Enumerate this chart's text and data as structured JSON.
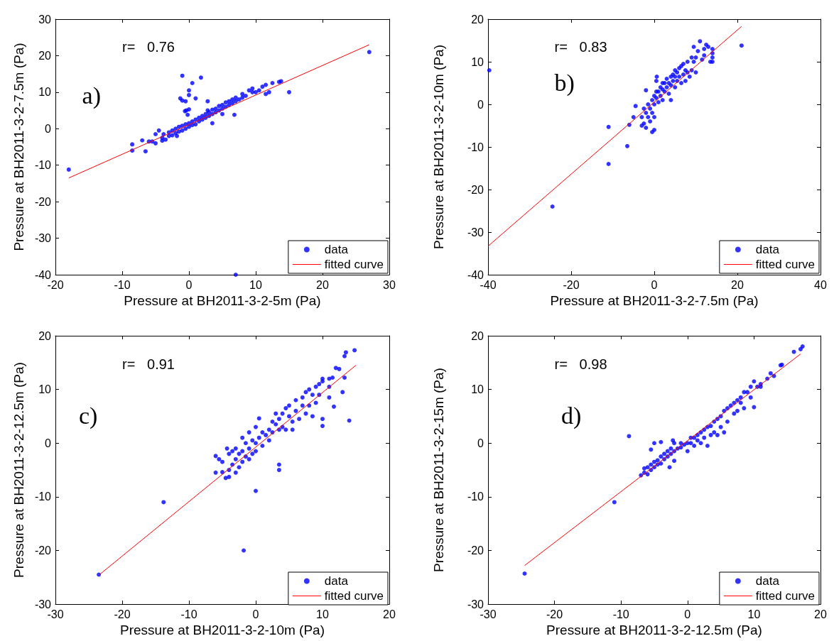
{
  "chart_data": [
    {
      "type": "scatter",
      "xlabel": "Pressure at BH2011-3-2-5m (Pa)",
      "ylabel": "Pressure at BH2011-3-2-7.5m (Pa)",
      "annotations": [
        "r=   0.76",
        "a)"
      ],
      "xlim": [
        -20,
        30
      ],
      "xticks": [
        -20,
        -10,
        0,
        10,
        20,
        30
      ],
      "ylim": [
        -40,
        30
      ],
      "yticks": [
        -40,
        -30,
        -20,
        -10,
        0,
        10,
        20,
        30
      ],
      "grid": false,
      "legend": "bottom right",
      "line_style": "solid",
      "series": [
        {
          "name": "data",
          "marker": "circle",
          "color": "#0000ff",
          "x": [
            -4,
            -3.8,
            -3.5,
            -3,
            -3,
            -2.5,
            -2.5,
            -2,
            -2,
            -1.8,
            -1.5,
            -1.5,
            -1,
            -1,
            -0.5,
            -0.5,
            0,
            0,
            0.5,
            0.5,
            1,
            1,
            1.5,
            1.5,
            2,
            2,
            2.5,
            2.5,
            3,
            3,
            3.5,
            3.5,
            4,
            4,
            4.5,
            4.5,
            5,
            5,
            5.5,
            5.5,
            6,
            6,
            6.5,
            6.5,
            7,
            7,
            7.5,
            8,
            8,
            8.5,
            9,
            9.5,
            9.5,
            10,
            10.5,
            11,
            11.5,
            12,
            12.5,
            13.5,
            13.8,
            11.5,
            3.5,
            6.8,
            5,
            -8.5,
            -8.5,
            -7,
            -6.5,
            -6,
            -5.5,
            -5,
            -4.5,
            -5,
            -4,
            -1,
            1.8,
            0.5,
            0,
            -1.3,
            0,
            -1,
            -0.5,
            1,
            2.8,
            -0.4,
            0,
            -0.6,
            -0.2,
            2.8,
            -18,
            27,
            15,
            7
          ],
          "values": [
            -2.5,
            -1.5,
            -3,
            -2,
            -1,
            -1.8,
            -0.5,
            -1.2,
            0,
            -2,
            -0.8,
            0.5,
            -0.5,
            0.8,
            0,
            1.2,
            0.5,
            1.5,
            1,
            2,
            1.2,
            2.5,
            2,
            3,
            2.5,
            3.5,
            3,
            4,
            3.5,
            4.5,
            4,
            5.2,
            4.5,
            5.5,
            5,
            6.2,
            5.5,
            6.5,
            6,
            7.2,
            6.5,
            7.5,
            7,
            8,
            7.5,
            8.5,
            8,
            8.5,
            9.5,
            9,
            10.5,
            10,
            11,
            10,
            10.5,
            11.5,
            12,
            10,
            12.5,
            12.8,
            13,
            9.5,
            1.5,
            3.8,
            4,
            -4.3,
            -6,
            -3.2,
            -6.2,
            -3.5,
            -3.5,
            -4,
            -0.5,
            -1.5,
            -3.3,
            14.5,
            14,
            12.5,
            10.5,
            8.3,
            9.2,
            7.7,
            7.5,
            8.3,
            7.5,
            5,
            5.3,
            4.8,
            3.8,
            5,
            -11.2,
            21,
            10,
            -40
          ]
        },
        {
          "name": "fitted curve",
          "type": "line",
          "marker": "none",
          "color": "#ff0000",
          "x": [
            -18,
            27
          ],
          "values": [
            -13.5,
            23
          ]
        }
      ]
    },
    {
      "type": "scatter",
      "xlabel": "Pressure at BH2011-3-2-7.5m (Pa)",
      "ylabel": "Pressure at BH2011-3-2-10m (Pa)",
      "annotations": [
        "r=   0.83",
        "b)"
      ],
      "xlim": [
        -40,
        40
      ],
      "xticks": [
        -40,
        -20,
        0,
        20,
        40
      ],
      "ylim": [
        -40,
        20
      ],
      "yticks": [
        -40,
        -30,
        -20,
        -10,
        0,
        10,
        20
      ],
      "grid": false,
      "legend": "bottom right",
      "line_style": "solid",
      "series": [
        {
          "name": "data",
          "marker": "circle",
          "color": "#0000ff",
          "x": [
            -3,
            -3,
            -2.5,
            -2.5,
            -2,
            -2,
            -1.5,
            -1.5,
            -1,
            -1,
            -0.5,
            -0.5,
            0,
            0,
            0,
            0.5,
            0.5,
            1,
            1,
            1.5,
            1.5,
            2,
            2,
            2,
            2.5,
            2.5,
            3,
            3,
            3.5,
            3.5,
            4,
            4,
            4,
            4.5,
            4.5,
            5,
            5,
            5,
            5.5,
            5.5,
            6,
            6,
            6.5,
            6.5,
            7,
            7,
            7.5,
            7.5,
            8,
            8,
            8.5,
            9,
            9,
            9.5,
            9.5,
            10,
            10,
            10.5,
            11,
            11.5,
            12,
            12,
            12.5,
            13,
            13.5,
            14,
            14,
            14,
            14,
            -0.5,
            0,
            -4.5,
            -2,
            0.5,
            0.6,
            -5,
            -39.7,
            21,
            -11,
            -11,
            -6.5,
            -6,
            -24.5
          ],
          "values": [
            -5,
            -3,
            -1,
            -4.5,
            -2,
            -5.5,
            0,
            -3,
            -1,
            -4,
            1,
            -2,
            0,
            2,
            -3,
            1.5,
            3,
            0.5,
            3,
            2,
            4,
            1,
            3.5,
            5,
            3,
            5,
            4,
            6,
            2.5,
            5,
            4.5,
            6.5,
            1,
            5.5,
            7,
            4,
            6.5,
            8,
            5.5,
            7.5,
            6.5,
            8.5,
            5,
            9,
            7,
            9.5,
            8,
            5.5,
            7.5,
            10,
            6.5,
            8,
            11,
            10,
            13.5,
            11,
            7.5,
            12.5,
            14.8,
            10.5,
            13,
            11.5,
            14,
            13.5,
            10,
            10,
            11,
            12,
            13,
            -6.5,
            -6,
            -0.4,
            3.3,
            5.5,
            6.5,
            -3,
            8,
            13.8,
            -5.3,
            -14,
            -9.8,
            -4.8,
            -24
          ]
        },
        {
          "name": "fitted curve",
          "type": "line",
          "marker": "none",
          "color": "#ff0000",
          "x": [
            -40,
            21
          ],
          "values": [
            -33.3,
            18.3
          ]
        }
      ]
    },
    {
      "type": "scatter",
      "xlabel": "Pressure at BH2011-3-2-10m (Pa)",
      "ylabel": "Pressure at BH2011-3-2-12.5m (Pa)",
      "annotations": [
        "r=   0.91",
        "c)"
      ],
      "xlim": [
        -30,
        20
      ],
      "xticks": [
        -30,
        -20,
        -10,
        0,
        10,
        20
      ],
      "ylim": [
        -30,
        20
      ],
      "yticks": [
        -30,
        -20,
        -10,
        0,
        10,
        20
      ],
      "grid": false,
      "legend": "bottom right",
      "line_style": "solid",
      "series": [
        {
          "name": "data",
          "marker": "circle",
          "color": "#0000ff",
          "x": [
            -6,
            -6,
            -5.5,
            -5,
            -5,
            -4.5,
            -4.3,
            -4,
            -4,
            -4,
            -3.5,
            -3.5,
            -3,
            -3,
            -3,
            -2.5,
            -2.5,
            -2,
            -2,
            -2,
            -1.5,
            -1.5,
            -1,
            -1,
            -1,
            -0.5,
            -0.5,
            0,
            0,
            0,
            0.5,
            0.5,
            1,
            1,
            1.5,
            2,
            2,
            2.5,
            2.5,
            3,
            3,
            3.5,
            3.5,
            4,
            4,
            4.5,
            4.5,
            5,
            5,
            5.5,
            5.5,
            6,
            6,
            6.5,
            7,
            7,
            7.5,
            7.5,
            8,
            8,
            8.5,
            8.5,
            9,
            9,
            9.5,
            9.5,
            10,
            10,
            10,
            10,
            11,
            11,
            11,
            11.5,
            12,
            12.5,
            13,
            13.3,
            11.7,
            14,
            13.5,
            13.3,
            14.8,
            -23.5,
            -13.8,
            -1.8,
            0,
            3.5,
            3.5
          ],
          "values": [
            -2.4,
            -5.5,
            -3,
            -3.5,
            -5.4,
            -6.5,
            -1,
            -2,
            -5,
            -6.3,
            -1.5,
            -4,
            -1,
            -3,
            -5.5,
            -2,
            -4.5,
            1,
            -1.5,
            -3.5,
            0,
            -2.5,
            2,
            -1,
            -3,
            0.5,
            -2,
            3,
            0,
            -1.5,
            1,
            4.6,
            2,
            -0.5,
            1.5,
            2.5,
            0.5,
            4,
            2,
            3.5,
            5.5,
            2.5,
            4.5,
            3,
            5.5,
            6.5,
            2.5,
            5,
            7,
            4,
            2.5,
            6,
            8,
            4.5,
            7,
            8.5,
            5.5,
            9.5,
            7,
            10,
            5,
            9,
            7.5,
            10.5,
            9,
            11,
            12,
            11.5,
            4.5,
            3.2,
            12,
            8.5,
            10.5,
            12.2,
            14,
            13.8,
            9.5,
            12.2,
            6.8,
            4.2,
            16.9,
            16.2,
            17.3,
            -24.5,
            -11,
            -20,
            -8.9,
            -4,
            -5
          ]
        },
        {
          "name": "fitted curve",
          "type": "line",
          "marker": "none",
          "color": "#ff0000",
          "x": [
            -23.5,
            15
          ],
          "values": [
            -24.6,
            14.5
          ]
        }
      ]
    },
    {
      "type": "scatter",
      "xlabel": "Pressure at BH2011-3-2-12.5m (Pa)",
      "ylabel": "Pressure at BH2011-3-2-15m (Pa)",
      "annotations": [
        "r=   0.98",
        "d)"
      ],
      "xlim": [
        -30,
        20
      ],
      "xticks": [
        -30,
        -20,
        -10,
        0,
        10,
        20
      ],
      "ylim": [
        -30,
        20
      ],
      "yticks": [
        -30,
        -20,
        -10,
        0,
        10,
        20
      ],
      "grid": false,
      "legend": "bottom right",
      "line_style": "solid",
      "series": [
        {
          "name": "data",
          "marker": "circle",
          "color": "#0000ff",
          "x": [
            -7,
            -6.5,
            -6.5,
            -6,
            -6,
            -5.5,
            -5.5,
            -5,
            -5,
            -4.5,
            -4.5,
            -4,
            -4,
            -3.5,
            -3.5,
            -3,
            -3,
            -2.5,
            -2.5,
            -2,
            -2,
            -2,
            -1.5,
            -1,
            -1,
            -0.5,
            0,
            0,
            0.5,
            0.5,
            1,
            1,
            1.5,
            1.5,
            2,
            2,
            2.5,
            2.5,
            3,
            3,
            3.5,
            3.5,
            4,
            4,
            4.5,
            4.5,
            5,
            5,
            5.5,
            5.5,
            6,
            6,
            6.5,
            7,
            7,
            7.5,
            7.5,
            8,
            8,
            8.5,
            8.5,
            9,
            9.5,
            9.5,
            10,
            10,
            10.5,
            11,
            11,
            12,
            12.5,
            13,
            14,
            14.2,
            16,
            17,
            17.3,
            -5,
            -4,
            -5.5,
            -2.7,
            -2.2,
            -8.8,
            -11,
            -24.5
          ],
          "values": [
            -6,
            -5.5,
            -4.7,
            -5.8,
            -4.5,
            -5,
            -4,
            -4.5,
            -3.5,
            -4,
            -3.2,
            -3.8,
            -2.5,
            -3,
            -2,
            -2.5,
            -1.5,
            -2,
            -1,
            -1.5,
            -3.3,
            0,
            -1,
            -0.8,
            0,
            -0.3,
            0,
            -1.5,
            1,
            0,
            1,
            -0.5,
            1.5,
            0.5,
            2,
            0,
            2.5,
            1,
            3,
            -0.5,
            3.2,
            1.5,
            4,
            2,
            4.5,
            1.5,
            5,
            3,
            6,
            2,
            6.5,
            4,
            7,
            7.5,
            5.5,
            8,
            6,
            8.5,
            7.5,
            9.5,
            6.5,
            9.5,
            8.5,
            10.5,
            11.5,
            6.7,
            10.5,
            10.5,
            11,
            12,
            13,
            12.5,
            14.5,
            14.6,
            17,
            17.5,
            18,
            0,
            0.2,
            -1.2,
            -4.5,
            0.5,
            1.3,
            -11,
            -24.3
          ]
        },
        {
          "name": "fitted curve",
          "type": "line",
          "marker": "none",
          "color": "#ff0000",
          "x": [
            -24.5,
            17
          ],
          "values": [
            -22.8,
            16.6
          ]
        }
      ]
    }
  ]
}
